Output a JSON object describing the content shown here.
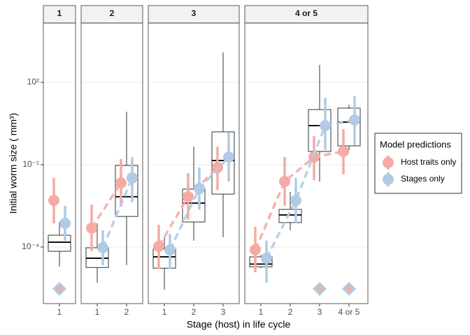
{
  "chart_data": {
    "type": "box",
    "y_label": "Initial worm size ( mm³)",
    "x_label": "Stage (host) in life cycle",
    "log_scale": true,
    "grid": true,
    "ylim": [
      8.7e-07,
      14500
    ],
    "yticks": [
      {
        "value": 0.0001,
        "label": "10⁻⁴"
      },
      {
        "value": 0.1,
        "label": "10⁻¹"
      },
      {
        "value": 100,
        "label": "10²"
      }
    ],
    "legend": {
      "title": "Model predictions",
      "position": "right"
    },
    "series": [
      {
        "name": "Host traits only",
        "color": "#f6aaa4"
      },
      {
        "name": "Stages only",
        "color": "#b0cbe3"
      }
    ],
    "facets": [
      {
        "title": "1",
        "categories": [
          "1"
        ],
        "boxes": [
          {
            "low": 1.95e-05,
            "q1": 7e-05,
            "median": 0.00015,
            "q3": 0.00027,
            "high": 0.00082
          }
        ],
        "predictions": [
          {
            "values": [
              0.005
            ],
            "lower": [
              0.00073
            ],
            "upper": [
              0.033
            ]
          },
          {
            "values": [
              0.00073
            ],
            "lower": [
              0.00017
            ],
            "upper": [
              0.0032
            ]
          }
        ],
        "floor": [
          3e-06
        ]
      },
      {
        "title": "2",
        "categories": [
          "1",
          "2"
        ],
        "boxes": [
          {
            "low": 5e-06,
            "q1": 1.8e-05,
            "median": 3.9e-05,
            "q3": 9.4e-05,
            "high": 0.00073
          },
          {
            "low": 2.2e-05,
            "q1": 0.0013,
            "median": 0.0068,
            "q3": 0.094,
            "high": 8.5
          }
        ],
        "predictions": [
          {
            "values": [
              0.00049,
              0.0218
            ],
            "lower": [
              7e-05,
              0.003
            ],
            "upper": [
              0.0035,
              0.16
            ]
          },
          {
            "values": [
              9.4e-05,
              0.033
            ],
            "lower": [
              2.2e-05,
              0.0043
            ],
            "upper": [
              0.00041,
              0.19
            ]
          }
        ],
        "floor": [
          null,
          null
        ]
      },
      {
        "title": "3",
        "categories": [
          "1",
          "2",
          "3"
        ],
        "boxes": [
          {
            "low": 2.8e-06,
            "q1": 1.7e-05,
            "median": 4.4e-05,
            "q3": 8.4e-05,
            "high": 0.00023
          },
          {
            "low": 0.00017,
            "q1": 0.00082,
            "median": 0.004,
            "q3": 0.0129,
            "high": 0.46
          },
          {
            "low": 0.00023,
            "q1": 0.0085,
            "median": 0.142,
            "q3": 1.57,
            "high": 1240
          }
        ],
        "predictions": [
          {
            "values": [
              0.000106,
              0.0068,
              0.079
            ],
            "lower": [
              1.6e-05,
              0.00098,
              0.0121
            ],
            "upper": [
              0.00065,
              0.0495,
              0.46
            ]
          },
          {
            "values": [
              7.9e-05,
              0.0136,
              0.19
            ],
            "lower": [
              1.6e-05,
              0.0023,
              0.0245
            ],
            "upper": [
              0.0003,
              0.079,
              1.48
            ]
          }
        ],
        "floor": [
          null,
          null,
          null
        ]
      },
      {
        "title": "4 or 5",
        "categories": [
          "1",
          "2",
          "3",
          "4 or 5"
        ],
        "boxes": [
          {
            "low": 1.7e-05,
            "q1": 1.9e-05,
            "median": 2.4e-05,
            "q3": 4.4e-05,
            "high": 5.2e-05
          },
          {
            "low": 0.00041,
            "q1": 0.00078,
            "median": 0.00148,
            "q3": 0.00235,
            "high": 0.0102
          },
          {
            "low": 0.0245,
            "q1": 0.304,
            "median": 2.65,
            "q3": 10.2,
            "high": 433
          },
          {
            "low": 0.342,
            "q1": 0.485,
            "median": 3.56,
            "q3": 11.5,
            "high": 15.3
          }
        ],
        "predictions": [
          {
            "values": [
              7.9e-05,
              0.0245,
              0.19,
              0.304
            ],
            "lower": [
              1.2e-05,
              0.0032,
              0.0275,
              0.044
            ],
            "upper": [
              0.00055,
              0.19,
              1.1,
              1.98
            ]
          },
          {
            "values": [
              3.9e-05,
              0.005,
              2.65,
              4.24
            ],
            "lower": [
              5e-06,
              0.00073,
              0.342,
              0.515
            ],
            "upper": [
              0.00017,
              0.033,
              27.5,
              31
            ]
          }
        ],
        "floor": [
          null,
          null,
          3e-06,
          3e-06
        ]
      }
    ]
  }
}
